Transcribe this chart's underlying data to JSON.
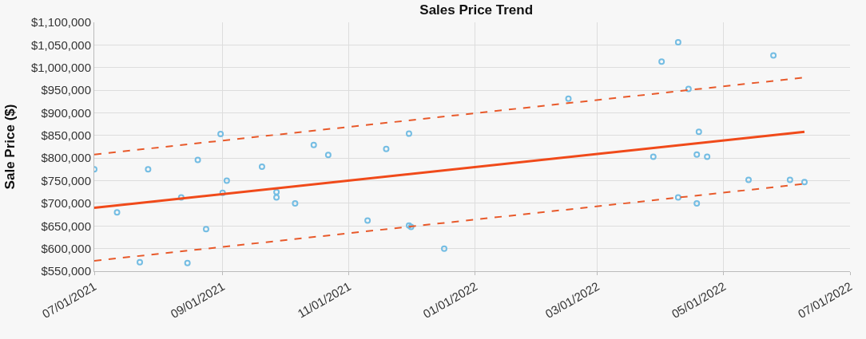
{
  "chart_data": {
    "type": "scatter",
    "title": "Sales Price Trend",
    "ylabel": "Sale Price ($)",
    "xlim": [
      "2021-07-01",
      "2022-07-01"
    ],
    "xticks": [
      {
        "value": "2021-07-01",
        "label": "07/01/2021"
      },
      {
        "value": "2021-09-01",
        "label": "09/01/2021"
      },
      {
        "value": "2021-11-01",
        "label": "11/01/2021"
      },
      {
        "value": "2022-01-01",
        "label": "01/01/2022"
      },
      {
        "value": "2022-03-01",
        "label": "03/01/2022"
      },
      {
        "value": "2022-05-01",
        "label": "05/01/2022"
      },
      {
        "value": "2022-07-01",
        "label": "07/01/2022"
      }
    ],
    "ylim": [
      550000,
      1100000
    ],
    "yticks": [
      {
        "value": 550000,
        "label": "$550,000"
      },
      {
        "value": 600000,
        "label": "$600,000"
      },
      {
        "value": 650000,
        "label": "$650,000"
      },
      {
        "value": 700000,
        "label": "$700,000"
      },
      {
        "value": 750000,
        "label": "$750,000"
      },
      {
        "value": 800000,
        "label": "$800,000"
      },
      {
        "value": 850000,
        "label": "$850,000"
      },
      {
        "value": 900000,
        "label": "$900,000"
      },
      {
        "value": 950000,
        "label": "$950,000"
      },
      {
        "value": 1000000,
        "label": "$1,000,000"
      },
      {
        "value": 1050000,
        "label": "$1,050,000"
      },
      {
        "value": 1100000,
        "label": "$1,100,000"
      }
    ],
    "grid": true,
    "series": [
      {
        "marker": "circle",
        "color": "#74bde3",
        "x": [
          "2021-07-01",
          "2021-07-12",
          "2021-07-23",
          "2021-07-27",
          "2021-08-12",
          "2021-08-15",
          "2021-08-20",
          "2021-08-24",
          "2021-08-31",
          "2021-09-01",
          "2021-09-03",
          "2021-09-20",
          "2021-09-27",
          "2021-09-27",
          "2021-10-06",
          "2021-10-15",
          "2021-10-22",
          "2021-11-10",
          "2021-11-19",
          "2021-11-30",
          "2021-11-30",
          "2021-12-01",
          "2021-12-17",
          "2022-02-15",
          "2022-03-28",
          "2022-04-01",
          "2022-04-09",
          "2022-04-09",
          "2022-04-14",
          "2022-04-19",
          "2022-04-18",
          "2022-04-18",
          "2022-04-23",
          "2022-05-13",
          "2022-05-25",
          "2022-06-02",
          "2022-06-09"
        ],
        "values": [
          775000,
          680000,
          570000,
          775000,
          713000,
          568000,
          796000,
          643000,
          853000,
          723000,
          750000,
          781000,
          725000,
          713000,
          700000,
          829000,
          807000,
          662000,
          820000,
          854000,
          651000,
          648000,
          600000,
          931000,
          803000,
          1013000,
          1056000,
          713000,
          953000,
          858000,
          808000,
          700000,
          803000,
          752000,
          1027000,
          752000,
          747000
        ]
      },
      {
        "type": "line",
        "marker": "none",
        "color": "#f04a1a",
        "line_style": "solid",
        "x": [
          "2021-07-01",
          "2022-06-09"
        ],
        "values": [
          690000,
          858000
        ]
      },
      {
        "type": "line",
        "marker": "none",
        "color": "#e8592a",
        "line_style": "dashed",
        "x": [
          "2021-07-01",
          "2022-06-09"
        ],
        "values": [
          808000,
          978000
        ]
      },
      {
        "type": "line",
        "marker": "none",
        "color": "#e8592a",
        "line_style": "dashed",
        "x": [
          "2021-07-01",
          "2022-06-09"
        ],
        "values": [
          573000,
          743000
        ]
      }
    ]
  }
}
